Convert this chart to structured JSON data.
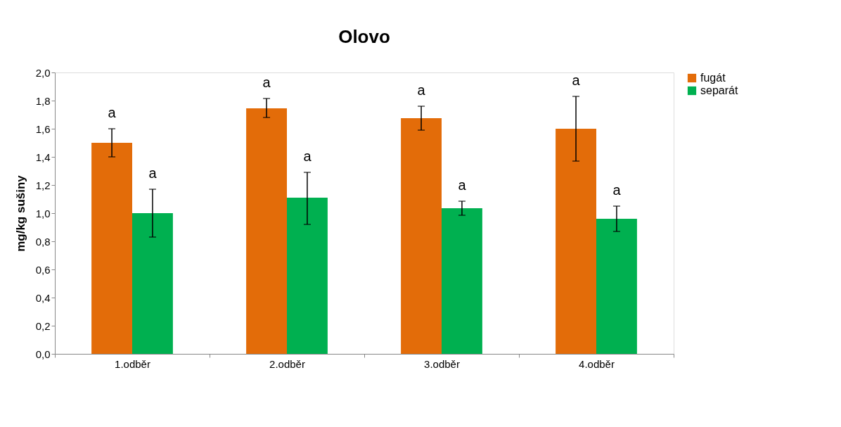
{
  "chart_data": {
    "type": "bar",
    "title": "Olovo",
    "ylabel": "mg/kg sušiny",
    "categories": [
      "1.odběr",
      "2.odběr",
      "3.odběr",
      "4.odběr"
    ],
    "series": [
      {
        "name": "fugát",
        "color": "#e36c09",
        "values": [
          1.5,
          1.745,
          1.675,
          1.6
        ],
        "errors": [
          [
            1.4,
            1.6
          ],
          [
            1.68,
            1.815
          ],
          [
            1.59,
            1.76
          ],
          [
            1.37,
            1.83
          ]
        ]
      },
      {
        "name": "separát",
        "color": "#00b050",
        "values": [
          1.0,
          1.11,
          1.035,
          0.96
        ],
        "errors": [
          [
            0.83,
            1.17
          ],
          [
            0.92,
            1.29
          ],
          [
            0.985,
            1.085
          ],
          [
            0.87,
            1.05
          ]
        ]
      }
    ],
    "ylim": [
      0,
      2
    ],
    "yticks": [
      {
        "value": 0,
        "label": "0,0"
      },
      {
        "value": 0.2,
        "label": "0,2"
      },
      {
        "value": 0.4,
        "label": "0,4"
      },
      {
        "value": 0.6,
        "label": "0,6"
      },
      {
        "value": 0.8,
        "label": "0,8"
      },
      {
        "value": 1.0,
        "label": "1,0"
      },
      {
        "value": 1.2,
        "label": "1,2"
      },
      {
        "value": 1.4,
        "label": "1,4"
      },
      {
        "value": 1.6,
        "label": "1,6"
      },
      {
        "value": 1.8,
        "label": "1,8"
      },
      {
        "value": 2.0,
        "label": "2,0"
      }
    ],
    "annotations": [
      "a",
      "a",
      "a",
      "a",
      "a",
      "a",
      "a",
      "a"
    ],
    "legend": "right",
    "grid": false
  }
}
